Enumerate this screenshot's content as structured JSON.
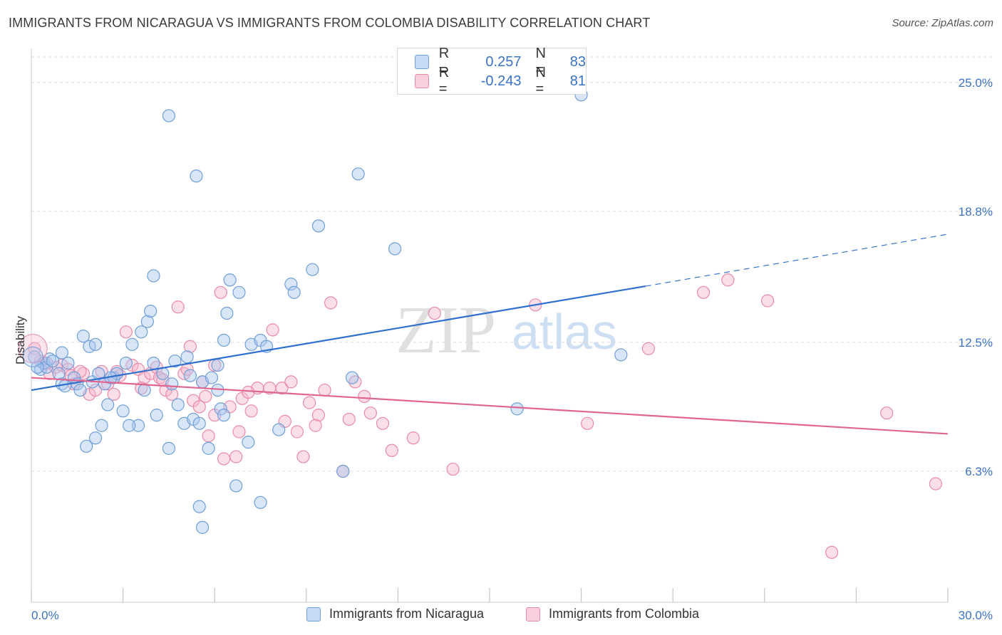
{
  "header": {
    "title": "IMMIGRANTS FROM NICARAGUA VS IMMIGRANTS FROM COLOMBIA DISABILITY CORRELATION CHART",
    "source": "Source: ZipAtlas.com"
  },
  "watermark": {
    "part1": "ZIP",
    "part2": "atlas"
  },
  "legend": {
    "rows": [
      {
        "r_label": "R =",
        "r_value": "0.257",
        "n_label": "N =",
        "n_value": "83"
      },
      {
        "r_label": "R =",
        "r_value": "-0.243",
        "n_label": "N =",
        "n_value": "81"
      }
    ]
  },
  "bottom_legend": {
    "items": [
      {
        "label": "Immigrants from Nicaragua"
      },
      {
        "label": "Immigrants from Colombia"
      }
    ]
  },
  "colors": {
    "blue_fill": "#a9c8f0",
    "blue_stroke": "#6f9fd8",
    "blue_line": "#2f6fcf",
    "pink_fill": "#f6b8cb",
    "pink_stroke": "#e98aa8",
    "pink_line": "#e0668f",
    "grid": "#dcdcdc",
    "axis_text": "#3b73c4"
  },
  "chart_data": {
    "type": "scatter",
    "title": "IMMIGRANTS FROM NICARAGUA VS IMMIGRANTS FROM COLOMBIA DISABILITY CORRELATION CHART",
    "ylabel": "Disability",
    "xlabel": "",
    "xlim": [
      0,
      30
    ],
    "ylim": [
      0,
      26.5
    ],
    "x_tick_labels": [
      "0.0%",
      "30.0%"
    ],
    "y_ticks": [
      6.3,
      12.5,
      18.8,
      25.0
    ],
    "y_tick_labels": [
      "6.3%",
      "12.5%",
      "18.8%",
      "25.0%"
    ],
    "grid": "horizontal dashed",
    "series": [
      {
        "name": "Immigrants from Nicaragua",
        "color": "#6f9fd8",
        "trend": {
          "x": [
            0,
            20.1
          ],
          "y": [
            10.2,
            15.2
          ],
          "dashed_to": [
            30,
            17.7
          ]
        },
        "points": [
          [
            0.1,
            11.8
          ],
          [
            0.3,
            11.2
          ],
          [
            0.4,
            11.5
          ],
          [
            0.5,
            11.3
          ],
          [
            0.6,
            11.7
          ],
          [
            0.7,
            11.6
          ],
          [
            0.9,
            11.0
          ],
          [
            1.0,
            12.0
          ],
          [
            1.0,
            10.5
          ],
          [
            1.1,
            10.4
          ],
          [
            1.2,
            11.5
          ],
          [
            1.4,
            10.8
          ],
          [
            1.5,
            10.5
          ],
          [
            1.6,
            10.2
          ],
          [
            1.7,
            12.8
          ],
          [
            1.9,
            12.3
          ],
          [
            2.0,
            10.6
          ],
          [
            2.1,
            12.4
          ],
          [
            2.2,
            11.0
          ],
          [
            2.3,
            8.5
          ],
          [
            2.4,
            10.5
          ],
          [
            2.5,
            9.5
          ],
          [
            2.7,
            10.8
          ],
          [
            2.8,
            11.0
          ],
          [
            3.0,
            9.2
          ],
          [
            3.1,
            11.5
          ],
          [
            3.3,
            12.4
          ],
          [
            3.5,
            8.5
          ],
          [
            3.6,
            13.0
          ],
          [
            3.8,
            13.5
          ],
          [
            3.9,
            14.0
          ],
          [
            4.0,
            15.7
          ],
          [
            4.1,
            9.0
          ],
          [
            4.3,
            11.0
          ],
          [
            4.5,
            7.4
          ],
          [
            4.6,
            10.5
          ],
          [
            4.7,
            11.6
          ],
          [
            4.8,
            9.5
          ],
          [
            5.0,
            8.6
          ],
          [
            5.1,
            11.8
          ],
          [
            5.2,
            10.9
          ],
          [
            5.3,
            8.8
          ],
          [
            5.5,
            8.6
          ],
          [
            5.6,
            10.6
          ],
          [
            5.8,
            7.4
          ],
          [
            6.1,
            10.2
          ],
          [
            6.2,
            9.3
          ],
          [
            6.3,
            12.6
          ],
          [
            6.4,
            13.9
          ],
          [
            6.5,
            15.5
          ],
          [
            6.7,
            5.6
          ],
          [
            6.8,
            14.9
          ],
          [
            7.1,
            7.7
          ],
          [
            7.2,
            12.4
          ],
          [
            7.5,
            12.6
          ],
          [
            7.7,
            12.3
          ],
          [
            8.1,
            8.3
          ],
          [
            8.5,
            15.3
          ],
          [
            8.6,
            14.9
          ],
          [
            9.2,
            16.0
          ],
          [
            10.2,
            6.3
          ],
          [
            10.5,
            10.8
          ],
          [
            10.7,
            20.6
          ],
          [
            11.9,
            17.0
          ],
          [
            15.9,
            9.3
          ],
          [
            18.0,
            24.4
          ],
          [
            19.3,
            11.9
          ],
          [
            4.5,
            23.4
          ],
          [
            5.4,
            20.5
          ],
          [
            9.4,
            18.1
          ],
          [
            6.3,
            9.0
          ],
          [
            4.0,
            11.5
          ],
          [
            3.2,
            8.5
          ],
          [
            2.1,
            7.9
          ],
          [
            1.8,
            7.5
          ],
          [
            5.5,
            4.6
          ],
          [
            5.6,
            3.6
          ],
          [
            7.5,
            4.8
          ],
          [
            5.9,
            10.8
          ],
          [
            6.1,
            11.4
          ],
          [
            3.7,
            10.2
          ],
          [
            2.6,
            10.8
          ],
          [
            0.2,
            11.3
          ]
        ]
      },
      {
        "name": "Immigrants from Colombia",
        "color": "#e98aa8",
        "trend": {
          "x": [
            0,
            30
          ],
          "y": [
            10.8,
            8.1
          ]
        },
        "points": [
          [
            0.1,
            12.2
          ],
          [
            0.4,
            11.5
          ],
          [
            0.6,
            11.0
          ],
          [
            0.8,
            11.3
          ],
          [
            1.0,
            11.4
          ],
          [
            1.2,
            11.2
          ],
          [
            1.4,
            10.5
          ],
          [
            1.7,
            11.0
          ],
          [
            1.9,
            10.0
          ],
          [
            2.1,
            10.2
          ],
          [
            2.3,
            11.1
          ],
          [
            2.5,
            10.5
          ],
          [
            2.7,
            10.0
          ],
          [
            2.9,
            10.9
          ],
          [
            3.1,
            13.0
          ],
          [
            3.3,
            11.4
          ],
          [
            3.5,
            11.2
          ],
          [
            3.7,
            10.8
          ],
          [
            3.9,
            11.0
          ],
          [
            4.1,
            11.3
          ],
          [
            4.2,
            10.8
          ],
          [
            4.4,
            10.2
          ],
          [
            4.6,
            10.0
          ],
          [
            4.8,
            14.2
          ],
          [
            5.0,
            11.0
          ],
          [
            5.2,
            12.3
          ],
          [
            5.3,
            9.7
          ],
          [
            5.5,
            9.4
          ],
          [
            5.7,
            9.9
          ],
          [
            5.8,
            8.0
          ],
          [
            6.0,
            11.4
          ],
          [
            6.2,
            14.9
          ],
          [
            6.3,
            6.9
          ],
          [
            6.5,
            9.4
          ],
          [
            6.7,
            7.0
          ],
          [
            6.9,
            9.8
          ],
          [
            7.2,
            9.2
          ],
          [
            7.4,
            10.3
          ],
          [
            7.8,
            10.3
          ],
          [
            7.9,
            13.1
          ],
          [
            8.2,
            10.3
          ],
          [
            8.5,
            10.6
          ],
          [
            8.7,
            8.2
          ],
          [
            8.9,
            7.0
          ],
          [
            9.1,
            9.6
          ],
          [
            9.4,
            9.0
          ],
          [
            9.8,
            14.4
          ],
          [
            10.2,
            6.3
          ],
          [
            10.6,
            10.6
          ],
          [
            10.9,
            9.9
          ],
          [
            11.1,
            9.1
          ],
          [
            11.8,
            7.3
          ],
          [
            12.5,
            7.9
          ],
          [
            13.2,
            13.9
          ],
          [
            13.8,
            6.4
          ],
          [
            16.5,
            14.3
          ],
          [
            18.2,
            8.6
          ],
          [
            20.2,
            12.2
          ],
          [
            22.0,
            14.9
          ],
          [
            22.8,
            15.5
          ],
          [
            24.1,
            14.5
          ],
          [
            26.2,
            2.4
          ],
          [
            28.0,
            9.1
          ],
          [
            29.6,
            5.7
          ],
          [
            0.3,
            11.6
          ],
          [
            1.6,
            11.1
          ],
          [
            2.8,
            11.1
          ],
          [
            3.6,
            10.3
          ],
          [
            4.3,
            10.7
          ],
          [
            5.1,
            11.2
          ],
          [
            7.1,
            10.1
          ],
          [
            8.3,
            8.7
          ],
          [
            9.3,
            8.5
          ],
          [
            10.4,
            8.8
          ],
          [
            11.5,
            8.6
          ],
          [
            6.0,
            9.0
          ],
          [
            5.6,
            10.6
          ],
          [
            6.8,
            8.2
          ],
          [
            9.6,
            10.2
          ],
          [
            1.3,
            10.9
          ],
          [
            0.5,
            11.5
          ]
        ]
      }
    ]
  }
}
